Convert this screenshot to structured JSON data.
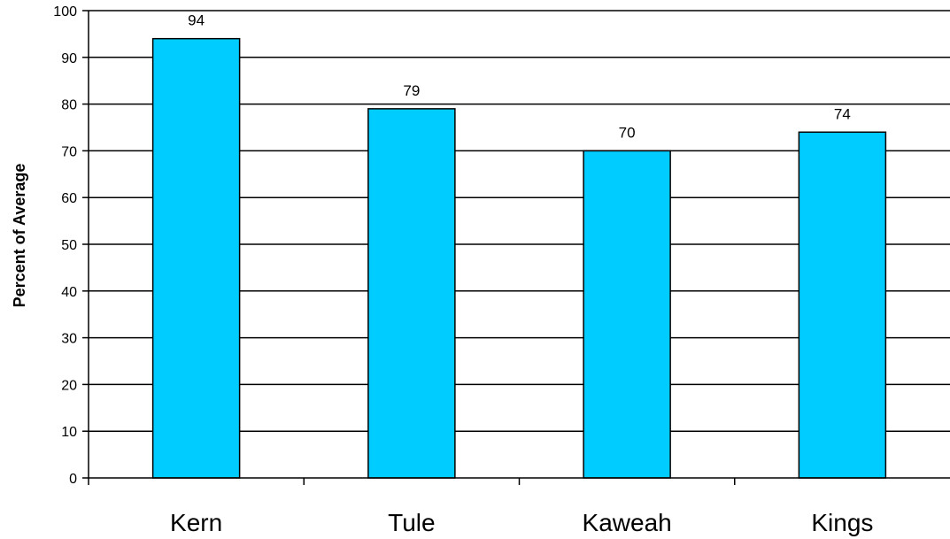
{
  "chart_data": {
    "type": "bar",
    "categories": [
      "Kern",
      "Tule",
      "Kaweah",
      "Kings"
    ],
    "values": [
      94,
      79,
      70,
      74
    ],
    "data_labels": [
      "94",
      "79",
      "70",
      "74"
    ],
    "title": "",
    "xlabel": "",
    "ylabel": "Percent of Average",
    "ylim": [
      0,
      100
    ],
    "yticks": [
      0,
      10,
      20,
      30,
      40,
      50,
      60,
      70,
      80,
      90,
      100
    ],
    "grid": true,
    "legend": "none",
    "bar_color": "#00CCFF",
    "bar_edge_color": "#000000"
  }
}
